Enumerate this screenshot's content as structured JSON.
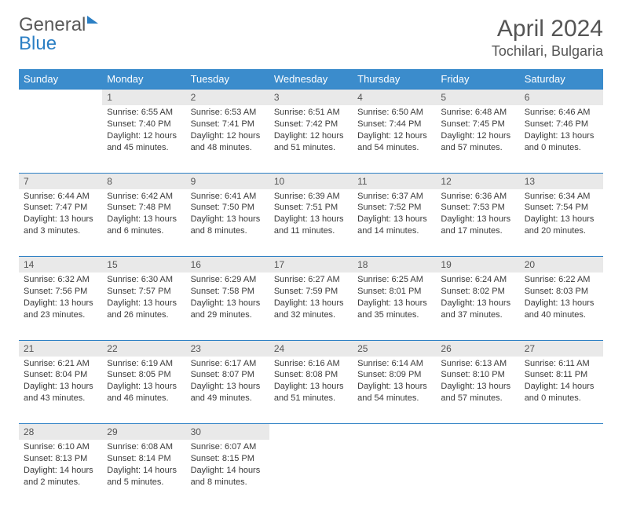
{
  "brand": {
    "general": "General",
    "blue": "Blue"
  },
  "title": "April 2024",
  "location": "Tochilari, Bulgaria",
  "colors": {
    "header_bg": "#3b8ccc",
    "accent": "#2b7fc4",
    "daynum_bg": "#e9e9e9"
  },
  "day_headers": [
    "Sunday",
    "Monday",
    "Tuesday",
    "Wednesday",
    "Thursday",
    "Friday",
    "Saturday"
  ],
  "weeks": [
    {
      "nums": [
        "",
        "1",
        "2",
        "3",
        "4",
        "5",
        "6"
      ],
      "cells": [
        null,
        {
          "sunrise": "Sunrise: 6:55 AM",
          "sunset": "Sunset: 7:40 PM",
          "daylight": "Daylight: 12 hours and 45 minutes."
        },
        {
          "sunrise": "Sunrise: 6:53 AM",
          "sunset": "Sunset: 7:41 PM",
          "daylight": "Daylight: 12 hours and 48 minutes."
        },
        {
          "sunrise": "Sunrise: 6:51 AM",
          "sunset": "Sunset: 7:42 PM",
          "daylight": "Daylight: 12 hours and 51 minutes."
        },
        {
          "sunrise": "Sunrise: 6:50 AM",
          "sunset": "Sunset: 7:44 PM",
          "daylight": "Daylight: 12 hours and 54 minutes."
        },
        {
          "sunrise": "Sunrise: 6:48 AM",
          "sunset": "Sunset: 7:45 PM",
          "daylight": "Daylight: 12 hours and 57 minutes."
        },
        {
          "sunrise": "Sunrise: 6:46 AM",
          "sunset": "Sunset: 7:46 PM",
          "daylight": "Daylight: 13 hours and 0 minutes."
        }
      ]
    },
    {
      "nums": [
        "7",
        "8",
        "9",
        "10",
        "11",
        "12",
        "13"
      ],
      "cells": [
        {
          "sunrise": "Sunrise: 6:44 AM",
          "sunset": "Sunset: 7:47 PM",
          "daylight": "Daylight: 13 hours and 3 minutes."
        },
        {
          "sunrise": "Sunrise: 6:42 AM",
          "sunset": "Sunset: 7:48 PM",
          "daylight": "Daylight: 13 hours and 6 minutes."
        },
        {
          "sunrise": "Sunrise: 6:41 AM",
          "sunset": "Sunset: 7:50 PM",
          "daylight": "Daylight: 13 hours and 8 minutes."
        },
        {
          "sunrise": "Sunrise: 6:39 AM",
          "sunset": "Sunset: 7:51 PM",
          "daylight": "Daylight: 13 hours and 11 minutes."
        },
        {
          "sunrise": "Sunrise: 6:37 AM",
          "sunset": "Sunset: 7:52 PM",
          "daylight": "Daylight: 13 hours and 14 minutes."
        },
        {
          "sunrise": "Sunrise: 6:36 AM",
          "sunset": "Sunset: 7:53 PM",
          "daylight": "Daylight: 13 hours and 17 minutes."
        },
        {
          "sunrise": "Sunrise: 6:34 AM",
          "sunset": "Sunset: 7:54 PM",
          "daylight": "Daylight: 13 hours and 20 minutes."
        }
      ]
    },
    {
      "nums": [
        "14",
        "15",
        "16",
        "17",
        "18",
        "19",
        "20"
      ],
      "cells": [
        {
          "sunrise": "Sunrise: 6:32 AM",
          "sunset": "Sunset: 7:56 PM",
          "daylight": "Daylight: 13 hours and 23 minutes."
        },
        {
          "sunrise": "Sunrise: 6:30 AM",
          "sunset": "Sunset: 7:57 PM",
          "daylight": "Daylight: 13 hours and 26 minutes."
        },
        {
          "sunrise": "Sunrise: 6:29 AM",
          "sunset": "Sunset: 7:58 PM",
          "daylight": "Daylight: 13 hours and 29 minutes."
        },
        {
          "sunrise": "Sunrise: 6:27 AM",
          "sunset": "Sunset: 7:59 PM",
          "daylight": "Daylight: 13 hours and 32 minutes."
        },
        {
          "sunrise": "Sunrise: 6:25 AM",
          "sunset": "Sunset: 8:01 PM",
          "daylight": "Daylight: 13 hours and 35 minutes."
        },
        {
          "sunrise": "Sunrise: 6:24 AM",
          "sunset": "Sunset: 8:02 PM",
          "daylight": "Daylight: 13 hours and 37 minutes."
        },
        {
          "sunrise": "Sunrise: 6:22 AM",
          "sunset": "Sunset: 8:03 PM",
          "daylight": "Daylight: 13 hours and 40 minutes."
        }
      ]
    },
    {
      "nums": [
        "21",
        "22",
        "23",
        "24",
        "25",
        "26",
        "27"
      ],
      "cells": [
        {
          "sunrise": "Sunrise: 6:21 AM",
          "sunset": "Sunset: 8:04 PM",
          "daylight": "Daylight: 13 hours and 43 minutes."
        },
        {
          "sunrise": "Sunrise: 6:19 AM",
          "sunset": "Sunset: 8:05 PM",
          "daylight": "Daylight: 13 hours and 46 minutes."
        },
        {
          "sunrise": "Sunrise: 6:17 AM",
          "sunset": "Sunset: 8:07 PM",
          "daylight": "Daylight: 13 hours and 49 minutes."
        },
        {
          "sunrise": "Sunrise: 6:16 AM",
          "sunset": "Sunset: 8:08 PM",
          "daylight": "Daylight: 13 hours and 51 minutes."
        },
        {
          "sunrise": "Sunrise: 6:14 AM",
          "sunset": "Sunset: 8:09 PM",
          "daylight": "Daylight: 13 hours and 54 minutes."
        },
        {
          "sunrise": "Sunrise: 6:13 AM",
          "sunset": "Sunset: 8:10 PM",
          "daylight": "Daylight: 13 hours and 57 minutes."
        },
        {
          "sunrise": "Sunrise: 6:11 AM",
          "sunset": "Sunset: 8:11 PM",
          "daylight": "Daylight: 14 hours and 0 minutes."
        }
      ]
    },
    {
      "nums": [
        "28",
        "29",
        "30",
        "",
        "",
        "",
        ""
      ],
      "cells": [
        {
          "sunrise": "Sunrise: 6:10 AM",
          "sunset": "Sunset: 8:13 PM",
          "daylight": "Daylight: 14 hours and 2 minutes."
        },
        {
          "sunrise": "Sunrise: 6:08 AM",
          "sunset": "Sunset: 8:14 PM",
          "daylight": "Daylight: 14 hours and 5 minutes."
        },
        {
          "sunrise": "Sunrise: 6:07 AM",
          "sunset": "Sunset: 8:15 PM",
          "daylight": "Daylight: 14 hours and 8 minutes."
        },
        null,
        null,
        null,
        null
      ]
    }
  ]
}
